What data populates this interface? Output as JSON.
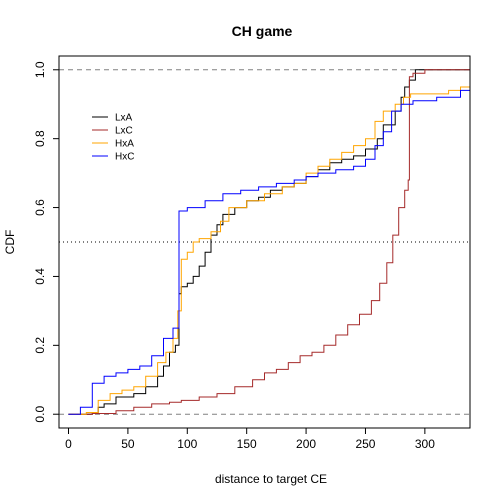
{
  "chart_data": {
    "type": "line",
    "step": true,
    "title": "CH game",
    "xlabel": "distance to target CE",
    "ylabel": "CDF",
    "xlim": [
      -8,
      338
    ],
    "ylim": [
      -0.04,
      1.04
    ],
    "xticks": [
      0,
      50,
      100,
      150,
      200,
      250,
      300
    ],
    "yticks": [
      0.0,
      0.2,
      0.4,
      0.6,
      0.8,
      1.0
    ],
    "ytick_labels": [
      "0.0",
      "0.2",
      "0.4",
      "0.6",
      "0.8",
      "1.0"
    ],
    "grid": false,
    "legend_position": "top-left",
    "reference_lines": [
      {
        "y": 0.0,
        "style": "dashed",
        "color": "#808080"
      },
      {
        "y": 0.5,
        "style": "dotted",
        "color": "#000000"
      },
      {
        "y": 1.0,
        "style": "dashed",
        "color": "#808080"
      }
    ],
    "series": [
      {
        "name": "LxA",
        "color": "#000000",
        "points": [
          [
            0,
            0
          ],
          [
            20,
            0.005
          ],
          [
            25,
            0.02
          ],
          [
            30,
            0.03
          ],
          [
            40,
            0.05
          ],
          [
            55,
            0.06
          ],
          [
            65,
            0.08
          ],
          [
            75,
            0.11
          ],
          [
            80,
            0.14
          ],
          [
            85,
            0.18
          ],
          [
            90,
            0.2
          ],
          [
            93,
            0.35
          ],
          [
            95,
            0.37
          ],
          [
            100,
            0.38
          ],
          [
            105,
            0.4
          ],
          [
            110,
            0.43
          ],
          [
            115,
            0.47
          ],
          [
            120,
            0.52
          ],
          [
            125,
            0.55
          ],
          [
            130,
            0.58
          ],
          [
            140,
            0.6
          ],
          [
            150,
            0.62
          ],
          [
            160,
            0.63
          ],
          [
            170,
            0.65
          ],
          [
            180,
            0.66
          ],
          [
            190,
            0.67
          ],
          [
            200,
            0.69
          ],
          [
            210,
            0.71
          ],
          [
            220,
            0.73
          ],
          [
            230,
            0.74
          ],
          [
            240,
            0.75
          ],
          [
            250,
            0.77
          ],
          [
            260,
            0.8
          ],
          [
            265,
            0.84
          ],
          [
            275,
            0.88
          ],
          [
            280,
            0.92
          ],
          [
            283,
            0.95
          ],
          [
            287,
            0.97
          ],
          [
            292,
            1.0
          ],
          [
            338,
            1.0
          ]
        ]
      },
      {
        "name": "LxC",
        "color": "#a52a2a",
        "points": [
          [
            0,
            0
          ],
          [
            20,
            0.002
          ],
          [
            40,
            0.01
          ],
          [
            55,
            0.02
          ],
          [
            70,
            0.03
          ],
          [
            85,
            0.035
          ],
          [
            95,
            0.04
          ],
          [
            110,
            0.05
          ],
          [
            125,
            0.06
          ],
          [
            140,
            0.08
          ],
          [
            155,
            0.1
          ],
          [
            165,
            0.12
          ],
          [
            175,
            0.13
          ],
          [
            185,
            0.15
          ],
          [
            195,
            0.17
          ],
          [
            205,
            0.18
          ],
          [
            215,
            0.2
          ],
          [
            225,
            0.23
          ],
          [
            235,
            0.26
          ],
          [
            245,
            0.29
          ],
          [
            255,
            0.33
          ],
          [
            262,
            0.38
          ],
          [
            268,
            0.44
          ],
          [
            273,
            0.52
          ],
          [
            278,
            0.6
          ],
          [
            283,
            0.65
          ],
          [
            286,
            0.68
          ],
          [
            287,
            0.98
          ],
          [
            290,
            0.99
          ],
          [
            300,
            1.0
          ],
          [
            338,
            1.0
          ]
        ]
      },
      {
        "name": "HxA",
        "color": "#ffa500",
        "points": [
          [
            0,
            0
          ],
          [
            15,
            0.005
          ],
          [
            25,
            0.04
          ],
          [
            35,
            0.06
          ],
          [
            45,
            0.07
          ],
          [
            55,
            0.08
          ],
          [
            65,
            0.11
          ],
          [
            75,
            0.15
          ],
          [
            82,
            0.18
          ],
          [
            88,
            0.22
          ],
          [
            92,
            0.3
          ],
          [
            95,
            0.45
          ],
          [
            100,
            0.47
          ],
          [
            105,
            0.5
          ],
          [
            110,
            0.51
          ],
          [
            120,
            0.53
          ],
          [
            128,
            0.56
          ],
          [
            135,
            0.6
          ],
          [
            150,
            0.62
          ],
          [
            165,
            0.64
          ],
          [
            180,
            0.66
          ],
          [
            190,
            0.67
          ],
          [
            200,
            0.7
          ],
          [
            210,
            0.72
          ],
          [
            220,
            0.74
          ],
          [
            230,
            0.76
          ],
          [
            240,
            0.78
          ],
          [
            250,
            0.8
          ],
          [
            258,
            0.85
          ],
          [
            265,
            0.88
          ],
          [
            275,
            0.9
          ],
          [
            282,
            0.92
          ],
          [
            288,
            0.93
          ],
          [
            320,
            0.94
          ],
          [
            330,
            0.95
          ],
          [
            338,
            0.95
          ]
        ]
      },
      {
        "name": "HxC",
        "color": "#0000ff",
        "points": [
          [
            0,
            0
          ],
          [
            10,
            0.02
          ],
          [
            20,
            0.09
          ],
          [
            30,
            0.11
          ],
          [
            40,
            0.12
          ],
          [
            50,
            0.13
          ],
          [
            60,
            0.14
          ],
          [
            70,
            0.17
          ],
          [
            80,
            0.22
          ],
          [
            88,
            0.25
          ],
          [
            93,
            0.59
          ],
          [
            100,
            0.6
          ],
          [
            115,
            0.62
          ],
          [
            130,
            0.64
          ],
          [
            145,
            0.65
          ],
          [
            160,
            0.66
          ],
          [
            175,
            0.67
          ],
          [
            190,
            0.68
          ],
          [
            200,
            0.69
          ],
          [
            210,
            0.7
          ],
          [
            225,
            0.71
          ],
          [
            240,
            0.72
          ],
          [
            250,
            0.74
          ],
          [
            258,
            0.78
          ],
          [
            265,
            0.82
          ],
          [
            272,
            0.88
          ],
          [
            280,
            0.9
          ],
          [
            290,
            0.91
          ],
          [
            310,
            0.92
          ],
          [
            330,
            0.94
          ],
          [
            338,
            0.94
          ]
        ]
      }
    ]
  }
}
